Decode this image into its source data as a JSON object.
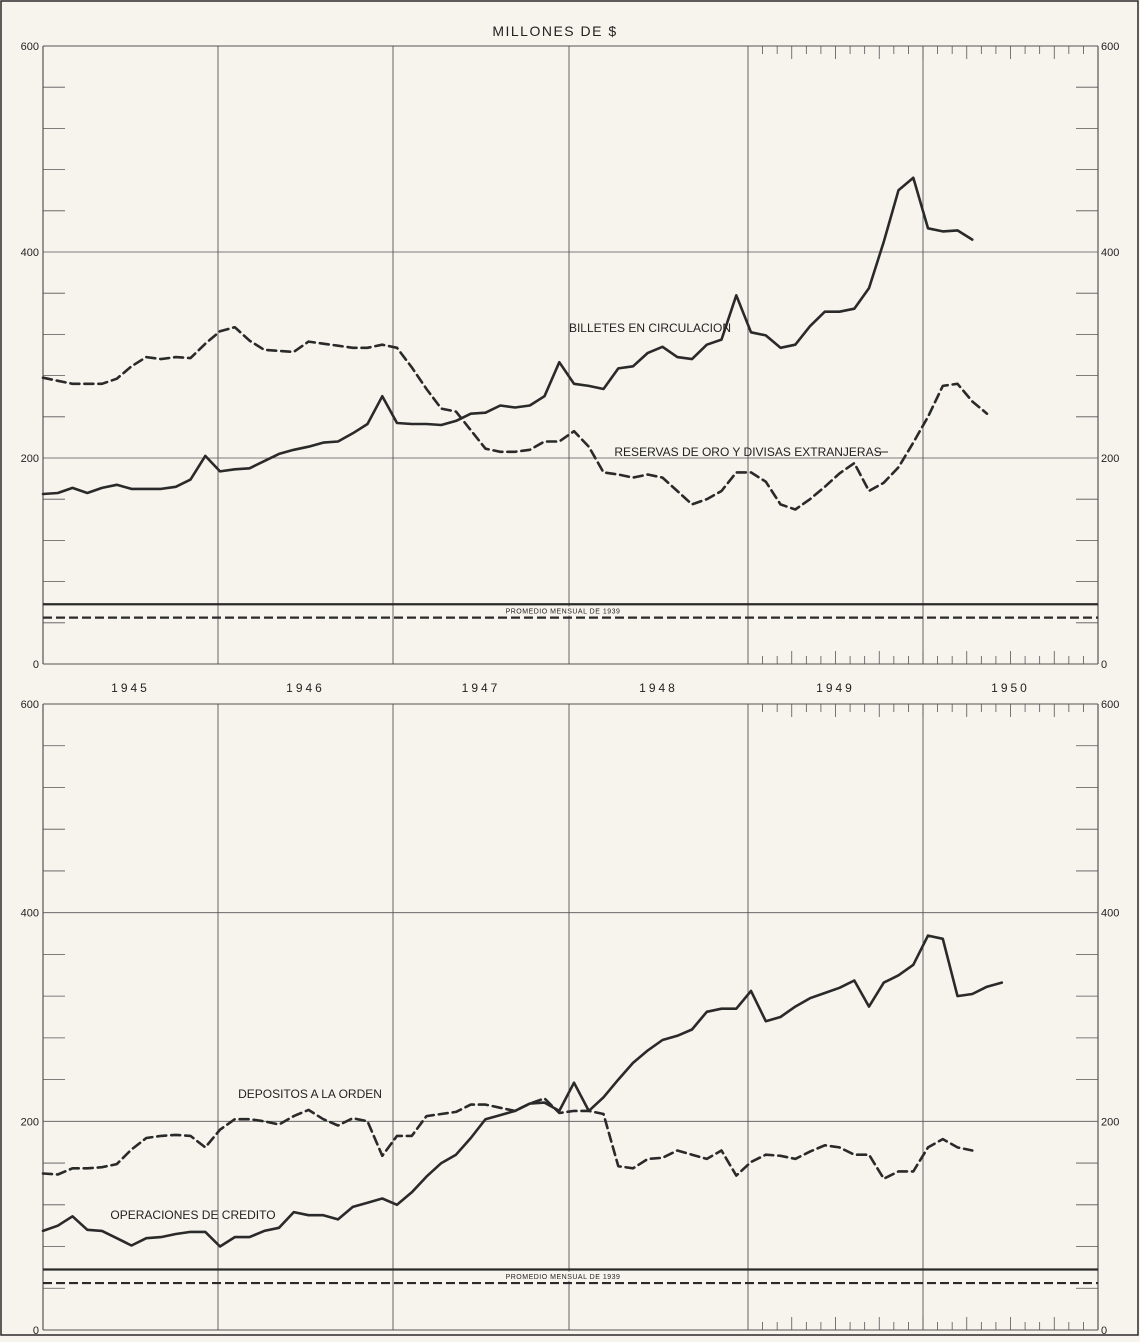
{
  "title": "MILLONES DE $",
  "years": [
    "1945",
    "1946",
    "1947",
    "1948",
    "1949",
    "1950"
  ],
  "reference_label": "PROMEDIO MENSUAL DE 1939",
  "colors": {
    "ink": "#2a2a2a",
    "grid": "#555555",
    "paper": "#f7f4ee"
  },
  "chart_data": [
    {
      "type": "line",
      "panel": "top",
      "ylim": [
        0,
        600
      ],
      "yticks": [
        0,
        200,
        400,
        600
      ],
      "x_unit": "month index starting January 1945",
      "series": [
        {
          "name": "BILLETES EN CIRCULACION",
          "style": "solid",
          "values": [
            165,
            166,
            171,
            166,
            171,
            174,
            170,
            170,
            170,
            172,
            179,
            202,
            187,
            189,
            190,
            197,
            204,
            208,
            211,
            215,
            216,
            224,
            233,
            260,
            234,
            233,
            233,
            232,
            236,
            243,
            244,
            251,
            249,
            251,
            260,
            293,
            272,
            270,
            267,
            287,
            289,
            302,
            308,
            298,
            296,
            310,
            315,
            358,
            322,
            319,
            307,
            310,
            328,
            342,
            342,
            345,
            365,
            410,
            460,
            472,
            423,
            420,
            421,
            412
          ]
        },
        {
          "name": "RESERVAS DE ORO Y DIVISAS EXTRANJERAS",
          "style": "dashed",
          "values": [
            278,
            275,
            272,
            272,
            272,
            277,
            289,
            298,
            296,
            298,
            297,
            311,
            323,
            327,
            314,
            305,
            304,
            303,
            313,
            311,
            309,
            307,
            307,
            310,
            307,
            288,
            267,
            248,
            245,
            227,
            209,
            206,
            206,
            208,
            216,
            216,
            226,
            211,
            186,
            184,
            181,
            184,
            181,
            168,
            155,
            160,
            168,
            186,
            186,
            177,
            155,
            150,
            160,
            172,
            185,
            195,
            168,
            176,
            191,
            215,
            240,
            270,
            272,
            255,
            243
          ]
        }
      ],
      "reference_lines": [
        {
          "value": 58,
          "style": "solid"
        },
        {
          "value": 45,
          "style": "dashed"
        }
      ]
    },
    {
      "type": "line",
      "panel": "bottom",
      "ylim": [
        0,
        600
      ],
      "yticks": [
        0,
        200,
        400,
        600
      ],
      "x_unit": "month index starting January 1945",
      "series": [
        {
          "name": "DEPOSITOS A LA ORDEN",
          "style": "dashed",
          "values": [
            150,
            149,
            155,
            155,
            156,
            159,
            173,
            184,
            186,
            187,
            186,
            175,
            192,
            202,
            202,
            200,
            197,
            205,
            211,
            202,
            196,
            203,
            200,
            167,
            186,
            186,
            205,
            207,
            209,
            216,
            216,
            213,
            210,
            217,
            222,
            208,
            210,
            210,
            207,
            157,
            155,
            164,
            165,
            172,
            168,
            164,
            172,
            148,
            161,
            168,
            167,
            164,
            171,
            177,
            175,
            168,
            168,
            145,
            152,
            152,
            175,
            183,
            175,
            172
          ]
        },
        {
          "name": "OPERACIONES DE CREDITO",
          "style": "solid",
          "values": [
            95,
            100,
            109,
            96,
            95,
            88,
            81,
            88,
            89,
            92,
            94,
            94,
            80,
            89,
            89,
            95,
            98,
            113,
            110,
            110,
            106,
            118,
            122,
            126,
            120,
            132,
            147,
            160,
            168,
            184,
            202,
            206,
            210,
            217,
            218,
            210,
            237,
            210,
            223,
            240,
            256,
            268,
            278,
            282,
            288,
            305,
            308,
            308,
            325,
            296,
            300,
            310,
            318,
            323,
            328,
            335,
            310,
            333,
            340,
            350,
            378,
            375,
            320,
            322,
            329,
            333
          ]
        }
      ],
      "reference_lines": [
        {
          "value": 58,
          "style": "solid"
        },
        {
          "value": 45,
          "style": "dashed"
        }
      ]
    }
  ]
}
